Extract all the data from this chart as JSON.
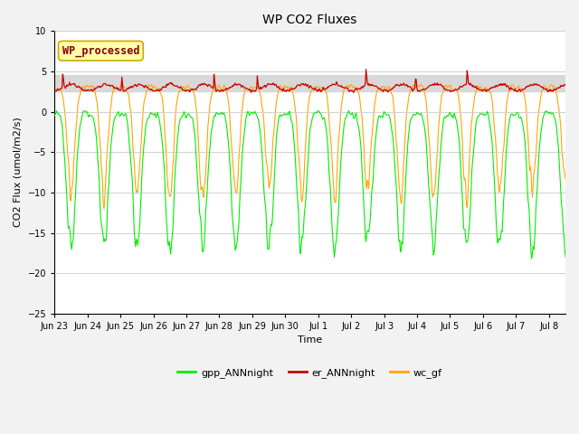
{
  "title": "WP CO2 Fluxes",
  "xlabel": "Time",
  "ylabel": "CO2 Flux (umol/m2/s)",
  "ylim": [
    -25,
    10
  ],
  "yticks": [
    -25,
    -20,
    -15,
    -10,
    -5,
    0,
    5,
    10
  ],
  "shaded_band": [
    2.5,
    4.5
  ],
  "fig_bg": "#f2f2f2",
  "plot_bg": "#ffffff",
  "grid_color": "#d0d0d0",
  "legend_entries": [
    "gpp_ANNnight",
    "er_ANNnight",
    "wc_gf"
  ],
  "line_colors": [
    "#00ee00",
    "#cc0000",
    "#ffa500"
  ],
  "watermark_text": "WP_processed",
  "watermark_color": "#8b0000",
  "watermark_bg": "#ffffaa",
  "watermark_edge": "#ccaa00",
  "n_days": 15.5,
  "points_per_day": 48,
  "title_fontsize": 10,
  "axis_fontsize": 8,
  "tick_fontsize": 7,
  "legend_fontsize": 8
}
